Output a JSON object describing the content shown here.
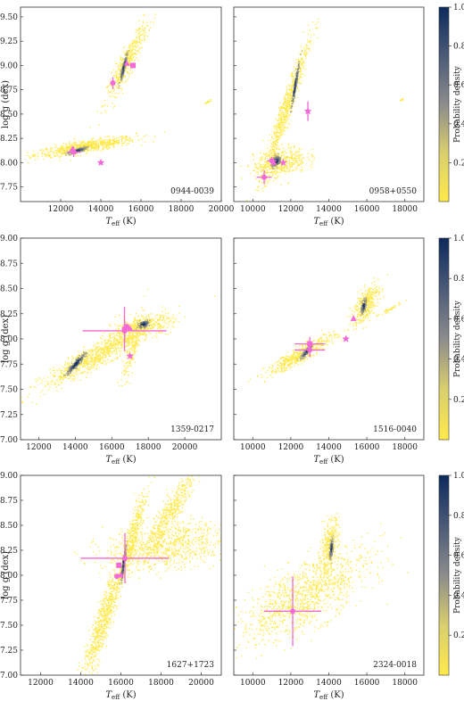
{
  "figure": {
    "description_free": true,
    "colorbar": {
      "label": "Probability density",
      "ticks": [
        "0.2",
        "0.4",
        "0.6",
        "0.8",
        "1.0"
      ],
      "cmap_low": "#ffe94a",
      "cmap_mid": "#8c8c8c",
      "cmap_high": "#0d2a5c"
    },
    "marker_color": "#f36ad8",
    "x_label_main": "T",
    "x_label_sub": "eff",
    "x_label_unit": " (K)",
    "y_label": "log g (dex)"
  },
  "chart_data": [
    {
      "type": "scatter",
      "name": "0944-0039",
      "xlim": [
        10000,
        20000
      ],
      "ylim": [
        7.6,
        9.6
      ],
      "xticks": [
        "12000",
        "14000",
        "16000",
        "18000",
        "20000"
      ],
      "yticks": [
        "7.75",
        "8.00",
        "8.25",
        "8.50",
        "8.75",
        "9.00",
        "9.25",
        "9.50"
      ],
      "clouds": [
        {
          "cx": 13200,
          "cy": 8.17,
          "sx": 1250,
          "sy": 0.05,
          "rho": 0.8,
          "n": 700,
          "core": [
            12800,
            8.13
          ]
        },
        {
          "cx": 15300,
          "cy": 9.05,
          "sx": 500,
          "sy": 0.2,
          "rho": 0.92,
          "n": 450,
          "core": [
            15100,
            8.98
          ]
        },
        {
          "cx": 19300,
          "cy": 8.63,
          "sx": 80,
          "sy": 0.01,
          "rho": 0.9,
          "n": 25
        }
      ],
      "markers": [
        {
          "shape": "circle",
          "x": 12650,
          "y": 8.11,
          "xerr": 350,
          "yerr": 0.05
        },
        {
          "shape": "triangle",
          "x": 12600,
          "y": 8.14
        },
        {
          "shape": "star",
          "x": 14000,
          "y": 8.0
        },
        {
          "shape": "circle",
          "x": 14600,
          "y": 8.82,
          "xerr": 0,
          "yerr": 0.06
        },
        {
          "shape": "square",
          "x": 15600,
          "y": 9.0
        },
        {
          "shape": "triangle",
          "x": 15300,
          "y": 9.02
        }
      ]
    },
    {
      "type": "scatter",
      "name": "0958+0550",
      "xlim": [
        9000,
        19000
      ],
      "ylim": [
        7.6,
        9.6
      ],
      "xticks": [
        "10000",
        "12000",
        "14000",
        "16000",
        "18000"
      ],
      "yticks": [
        "7.75",
        "8.00",
        "8.25",
        "8.50",
        "8.75",
        "9.00",
        "9.25",
        "9.50"
      ],
      "clouds": [
        {
          "cx": 11700,
          "cy": 8.55,
          "sx": 600,
          "sy": 0.35,
          "rho": 0.96,
          "n": 700,
          "core": [
            12200,
            8.8
          ]
        },
        {
          "cx": 11400,
          "cy": 8.0,
          "sx": 700,
          "sy": 0.08,
          "rho": 0.4,
          "n": 450,
          "core": [
            11200,
            8.02
          ]
        },
        {
          "cx": 17800,
          "cy": 8.65,
          "sx": 60,
          "sy": 0.01,
          "rho": 0.9,
          "n": 20
        }
      ],
      "markers": [
        {
          "shape": "circle",
          "x": 10600,
          "y": 7.85,
          "xerr": 400,
          "yerr": 0.07
        },
        {
          "shape": "circle",
          "x": 11000,
          "y": 8.02,
          "xerr": 250,
          "yerr": 0.04
        },
        {
          "shape": "star",
          "x": 11600,
          "y": 8.0
        },
        {
          "shape": "triangle",
          "x": 11100,
          "y": 8.0
        },
        {
          "shape": "star",
          "x": 12900,
          "y": 8.53,
          "xerr": 0,
          "yerr": 0.1
        }
      ]
    },
    {
      "type": "scatter",
      "name": "1359-0217",
      "xlim": [
        11000,
        22000
      ],
      "ylim": [
        7.0,
        9.0
      ],
      "xticks": [
        "12000",
        "14000",
        "16000",
        "18000",
        "20000"
      ],
      "yticks": [
        "7.00",
        "7.25",
        "7.50",
        "7.75",
        "8.00",
        "8.25",
        "8.50",
        "8.75",
        "9.00"
      ],
      "clouds": [
        {
          "cx": 15200,
          "cy": 7.85,
          "sx": 1500,
          "sy": 0.16,
          "rho": 0.93,
          "n": 900,
          "core": [
            14000,
            7.76
          ]
        },
        {
          "cx": 17500,
          "cy": 8.12,
          "sx": 900,
          "sy": 0.06,
          "rho": 0.5,
          "n": 350,
          "core": [
            17700,
            8.15
          ]
        },
        {
          "cx": 17200,
          "cy": 7.95,
          "sx": 300,
          "sy": 0.18,
          "rho": 0.85,
          "n": 180
        }
      ],
      "markers": [
        {
          "shape": "circle",
          "x": 16700,
          "y": 8.08,
          "xerr": 2300,
          "yerr": 0.12
        },
        {
          "shape": "square",
          "x": 16800,
          "y": 8.12
        },
        {
          "shape": "triangle",
          "x": 17000,
          "y": 8.1
        },
        {
          "shape": "star",
          "x": 17000,
          "y": 7.83
        },
        {
          "shape": "circle",
          "x": 16700,
          "y": 8.1,
          "xerr": 0,
          "yerr": 0.22
        }
      ]
    },
    {
      "type": "scatter",
      "name": "1516-0040",
      "xlim": [
        9000,
        19000
      ],
      "ylim": [
        7.0,
        9.0
      ],
      "xticks": [
        "10000",
        "12000",
        "14000",
        "16000",
        "18000"
      ],
      "yticks": [
        "7.00",
        "7.25",
        "7.50",
        "7.75",
        "8.00",
        "8.25",
        "8.50",
        "8.75",
        "9.00"
      ],
      "clouds": [
        {
          "cx": 12500,
          "cy": 7.85,
          "sx": 900,
          "sy": 0.1,
          "rho": 0.92,
          "n": 500,
          "core": [
            12800,
            7.88
          ]
        },
        {
          "cx": 15900,
          "cy": 8.35,
          "sx": 350,
          "sy": 0.1,
          "rho": 0.6,
          "n": 350,
          "core": [
            15800,
            8.33
          ]
        },
        {
          "cx": 17200,
          "cy": 8.3,
          "sx": 300,
          "sy": 0.03,
          "rho": 0.95,
          "n": 40
        }
      ],
      "markers": [
        {
          "shape": "circle",
          "x": 13000,
          "y": 7.89,
          "xerr": 800,
          "yerr": 0.07
        },
        {
          "shape": "square",
          "x": 13000,
          "y": 7.95,
          "xerr": 800,
          "yerr": 0.07
        },
        {
          "shape": "star",
          "x": 14900,
          "y": 8.0
        },
        {
          "shape": "triangle",
          "x": 15300,
          "y": 8.2
        }
      ]
    },
    {
      "type": "scatter",
      "name": "1627+1723",
      "xlim": [
        11000,
        21000
      ],
      "ylim": [
        7.0,
        9.0
      ],
      "xticks": [
        "12000",
        "14000",
        "16000",
        "18000",
        "20000"
      ],
      "yticks": [
        "7.00",
        "7.25",
        "7.50",
        "7.75",
        "8.00",
        "8.25",
        "8.50",
        "8.75",
        "9.00"
      ],
      "clouds": [
        {
          "cx": 18200,
          "cy": 8.3,
          "sx": 1500,
          "sy": 0.12,
          "rho": 0.3,
          "n": 800
        },
        {
          "cx": 15100,
          "cy": 7.55,
          "sx": 500,
          "sy": 0.3,
          "rho": 0.9,
          "n": 700
        },
        {
          "cx": 16500,
          "cy": 8.35,
          "sx": 350,
          "sy": 0.25,
          "rho": 0.9,
          "n": 400,
          "core": [
            16100,
            8.12
          ]
        },
        {
          "cx": 18500,
          "cy": 8.65,
          "sx": 600,
          "sy": 0.2,
          "rho": 0.9,
          "n": 400
        }
      ],
      "markers": [
        {
          "shape": "circle",
          "x": 16200,
          "y": 8.17,
          "xerr": 2200,
          "yerr": 0.25
        },
        {
          "shape": "circle",
          "x": 15800,
          "y": 7.99
        },
        {
          "shape": "square",
          "x": 15900,
          "y": 8.1
        },
        {
          "shape": "triangle",
          "x": 16000,
          "y": 8.0
        }
      ]
    },
    {
      "type": "scatter",
      "name": "2324-0018",
      "xlim": [
        9000,
        19000
      ],
      "ylim": [
        7.0,
        9.0
      ],
      "xticks": [
        "10000",
        "12000",
        "14000",
        "16000",
        "18000"
      ],
      "yticks": [
        "7.00",
        "7.25",
        "7.50",
        "7.75",
        "8.00",
        "8.25",
        "8.50",
        "8.75",
        "9.00"
      ],
      "clouds": [
        {
          "cx": 12700,
          "cy": 7.8,
          "sx": 1700,
          "sy": 0.23,
          "rho": 0.7,
          "n": 1100
        },
        {
          "cx": 14000,
          "cy": 8.3,
          "sx": 250,
          "sy": 0.14,
          "rho": 0.5,
          "n": 300,
          "core": [
            14100,
            8.27
          ]
        }
      ],
      "markers": [
        {
          "shape": "circle",
          "x": 12100,
          "y": 7.64,
          "xerr": 1500,
          "yerr": 0.35
        }
      ]
    }
  ]
}
